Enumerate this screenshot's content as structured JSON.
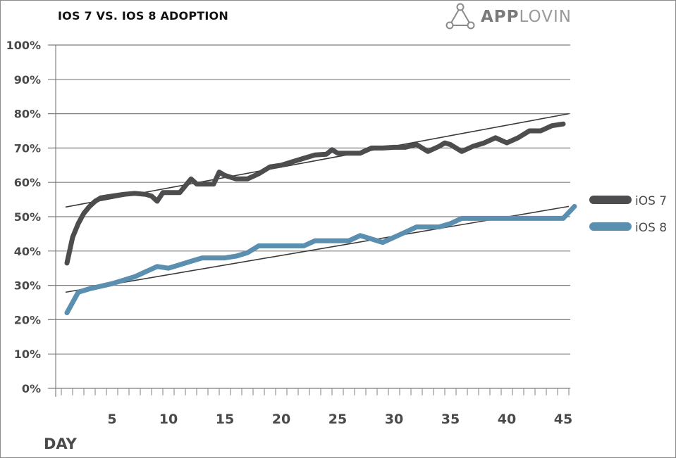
{
  "chart_title": "IOS 7 VS. IOS 8 ADOPTION",
  "brand": {
    "bold": "APP",
    "light": "LOVIN",
    "icon": "applovin-triangle-logo-icon"
  },
  "chart_data": {
    "type": "line",
    "title": "IOS 7 VS. IOS 8 ADOPTION",
    "xlabel": "DAY",
    "ylabel": "",
    "xlim": [
      0,
      46.5
    ],
    "ylim": [
      0,
      100
    ],
    "x_ticks": [
      5,
      10,
      15,
      20,
      25,
      30,
      35,
      40,
      45
    ],
    "y_ticks": [
      0,
      10,
      20,
      30,
      40,
      50,
      60,
      70,
      80,
      90,
      100
    ],
    "y_tick_labels": [
      "0%",
      "10%",
      "20%",
      "30%",
      "40%",
      "50%",
      "60%",
      "70%",
      "80%",
      "90%",
      "100%"
    ],
    "grid": "horizontal",
    "legend_position": "right",
    "series": [
      {
        "name": "iOS 7",
        "color": "#4d4d4f",
        "points": [
          [
            1,
            36.5
          ],
          [
            1.5,
            44
          ],
          [
            2,
            48
          ],
          [
            2.5,
            51
          ],
          [
            3,
            53
          ],
          [
            3.5,
            54.5
          ],
          [
            4,
            55.5
          ],
          [
            5,
            56
          ],
          [
            6,
            56.5
          ],
          [
            7,
            56.8
          ],
          [
            8,
            56.5
          ],
          [
            8.5,
            56
          ],
          [
            9,
            54.5
          ],
          [
            9.5,
            57
          ],
          [
            10,
            57
          ],
          [
            11,
            57
          ],
          [
            12,
            61
          ],
          [
            12.5,
            59.5
          ],
          [
            13,
            59.5
          ],
          [
            14,
            59.5
          ],
          [
            14.5,
            63
          ],
          [
            15,
            62
          ],
          [
            16,
            61
          ],
          [
            17,
            61
          ],
          [
            18,
            62.5
          ],
          [
            19,
            64.5
          ],
          [
            20,
            65
          ],
          [
            21,
            66
          ],
          [
            22,
            67
          ],
          [
            23,
            68
          ],
          [
            24,
            68.2
          ],
          [
            24.5,
            69.5
          ],
          [
            25,
            68.5
          ],
          [
            26,
            68.5
          ],
          [
            27,
            68.5
          ],
          [
            28,
            70
          ],
          [
            29,
            70
          ],
          [
            30,
            70.2
          ],
          [
            31,
            70.2
          ],
          [
            32,
            71
          ],
          [
            33,
            69
          ],
          [
            34,
            70.5
          ],
          [
            34.5,
            71.5
          ],
          [
            35,
            71
          ],
          [
            36,
            69
          ],
          [
            37,
            70.5
          ],
          [
            38,
            71.5
          ],
          [
            39,
            73
          ],
          [
            40,
            71.5
          ],
          [
            41,
            73
          ],
          [
            42,
            75
          ],
          [
            43,
            75
          ],
          [
            44,
            76.5
          ],
          [
            45,
            77
          ]
        ],
        "trendline": [
          [
            0,
            52.8
          ],
          [
            45,
            80
          ]
        ]
      },
      {
        "name": "iOS 8",
        "color": "#5b8fb0",
        "points": [
          [
            1,
            22
          ],
          [
            2,
            28
          ],
          [
            3,
            29
          ],
          [
            5,
            30.5
          ],
          [
            6,
            31.5
          ],
          [
            7,
            32.5
          ],
          [
            8,
            34
          ],
          [
            9,
            35.5
          ],
          [
            10,
            35
          ],
          [
            11,
            36
          ],
          [
            12,
            37
          ],
          [
            13,
            38
          ],
          [
            14,
            38
          ],
          [
            15,
            38
          ],
          [
            16,
            38.5
          ],
          [
            17,
            39.5
          ],
          [
            18,
            41.5
          ],
          [
            19,
            41.5
          ],
          [
            20,
            41.5
          ],
          [
            21,
            41.5
          ],
          [
            22,
            41.5
          ],
          [
            23,
            43
          ],
          [
            24,
            43
          ],
          [
            25,
            43
          ],
          [
            26,
            43
          ],
          [
            27,
            44.5
          ],
          [
            28,
            43.5
          ],
          [
            29,
            42.5
          ],
          [
            30,
            44
          ],
          [
            31,
            45.5
          ],
          [
            32,
            47
          ],
          [
            33,
            47
          ],
          [
            34,
            47
          ],
          [
            35,
            48
          ],
          [
            36,
            49.5
          ],
          [
            37,
            49.5
          ],
          [
            38,
            49.5
          ],
          [
            39,
            49.5
          ],
          [
            40,
            49.5
          ],
          [
            41,
            49.5
          ],
          [
            42,
            49.5
          ],
          [
            43,
            49.5
          ],
          [
            44,
            49.5
          ],
          [
            45,
            49.5
          ],
          [
            46,
            53
          ]
        ],
        "trendline": [
          [
            0,
            28
          ],
          [
            45,
            53
          ]
        ]
      }
    ]
  }
}
